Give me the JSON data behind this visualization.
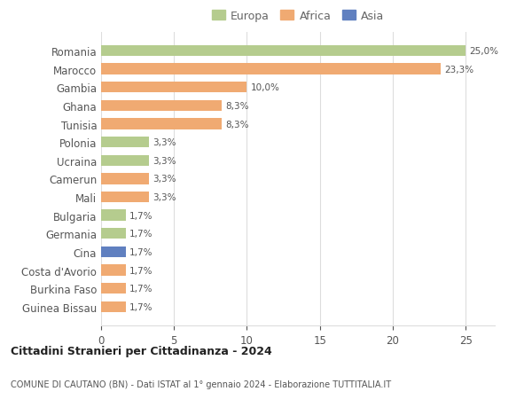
{
  "countries": [
    "Romania",
    "Marocco",
    "Gambia",
    "Ghana",
    "Tunisia",
    "Polonia",
    "Ucraina",
    "Camerun",
    "Mali",
    "Bulgaria",
    "Germania",
    "Cina",
    "Costa d'Avorio",
    "Burkina Faso",
    "Guinea Bissau"
  ],
  "values": [
    25.0,
    23.3,
    10.0,
    8.3,
    8.3,
    3.3,
    3.3,
    3.3,
    3.3,
    1.7,
    1.7,
    1.7,
    1.7,
    1.7,
    1.7
  ],
  "labels": [
    "25,0%",
    "23,3%",
    "10,0%",
    "8,3%",
    "8,3%",
    "3,3%",
    "3,3%",
    "3,3%",
    "3,3%",
    "1,7%",
    "1,7%",
    "1,7%",
    "1,7%",
    "1,7%",
    "1,7%"
  ],
  "colors": [
    "#b5cc8e",
    "#f0aa72",
    "#f0aa72",
    "#f0aa72",
    "#f0aa72",
    "#b5cc8e",
    "#b5cc8e",
    "#f0aa72",
    "#f0aa72",
    "#b5cc8e",
    "#b5cc8e",
    "#6080c0",
    "#f0aa72",
    "#f0aa72",
    "#f0aa72"
  ],
  "legend": [
    {
      "label": "Europa",
      "color": "#b5cc8e"
    },
    {
      "label": "Africa",
      "color": "#f0aa72"
    },
    {
      "label": "Asia",
      "color": "#6080c0"
    }
  ],
  "title1": "Cittadini Stranieri per Cittadinanza - 2024",
  "title2": "COMUNE DI CAUTANO (BN) - Dati ISTAT al 1° gennaio 2024 - Elaborazione TUTTITALIA.IT",
  "xlim": [
    0,
    27
  ],
  "xticks": [
    0,
    5,
    10,
    15,
    20,
    25
  ],
  "bg_color": "#ffffff",
  "grid_color": "#dddddd"
}
